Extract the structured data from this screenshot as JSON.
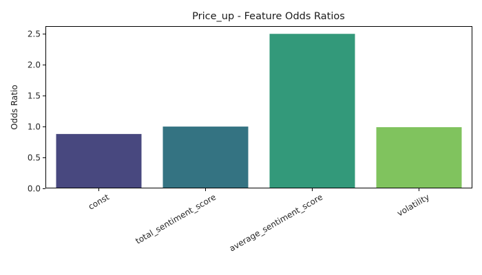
{
  "chart_data": {
    "type": "bar",
    "title": "Price_up - Feature Odds Ratios",
    "xlabel": "",
    "ylabel": "Odds Ratio",
    "categories": [
      "const",
      "total_sentiment_score",
      "average_sentiment_score",
      "volatility"
    ],
    "values": [
      0.88,
      1.0,
      2.5,
      0.99
    ],
    "colors": [
      "#48487f",
      "#347382",
      "#33997a",
      "#80c35e"
    ],
    "ylim": [
      0,
      2.625
    ],
    "yticks": [
      0.0,
      0.5,
      1.0,
      1.5,
      2.0,
      2.5
    ],
    "ytick_labels": [
      "0.0",
      "0.5",
      "1.0",
      "1.5",
      "2.0",
      "2.5"
    ],
    "xtick_rotation": -30,
    "grid": false,
    "legend": "none"
  }
}
